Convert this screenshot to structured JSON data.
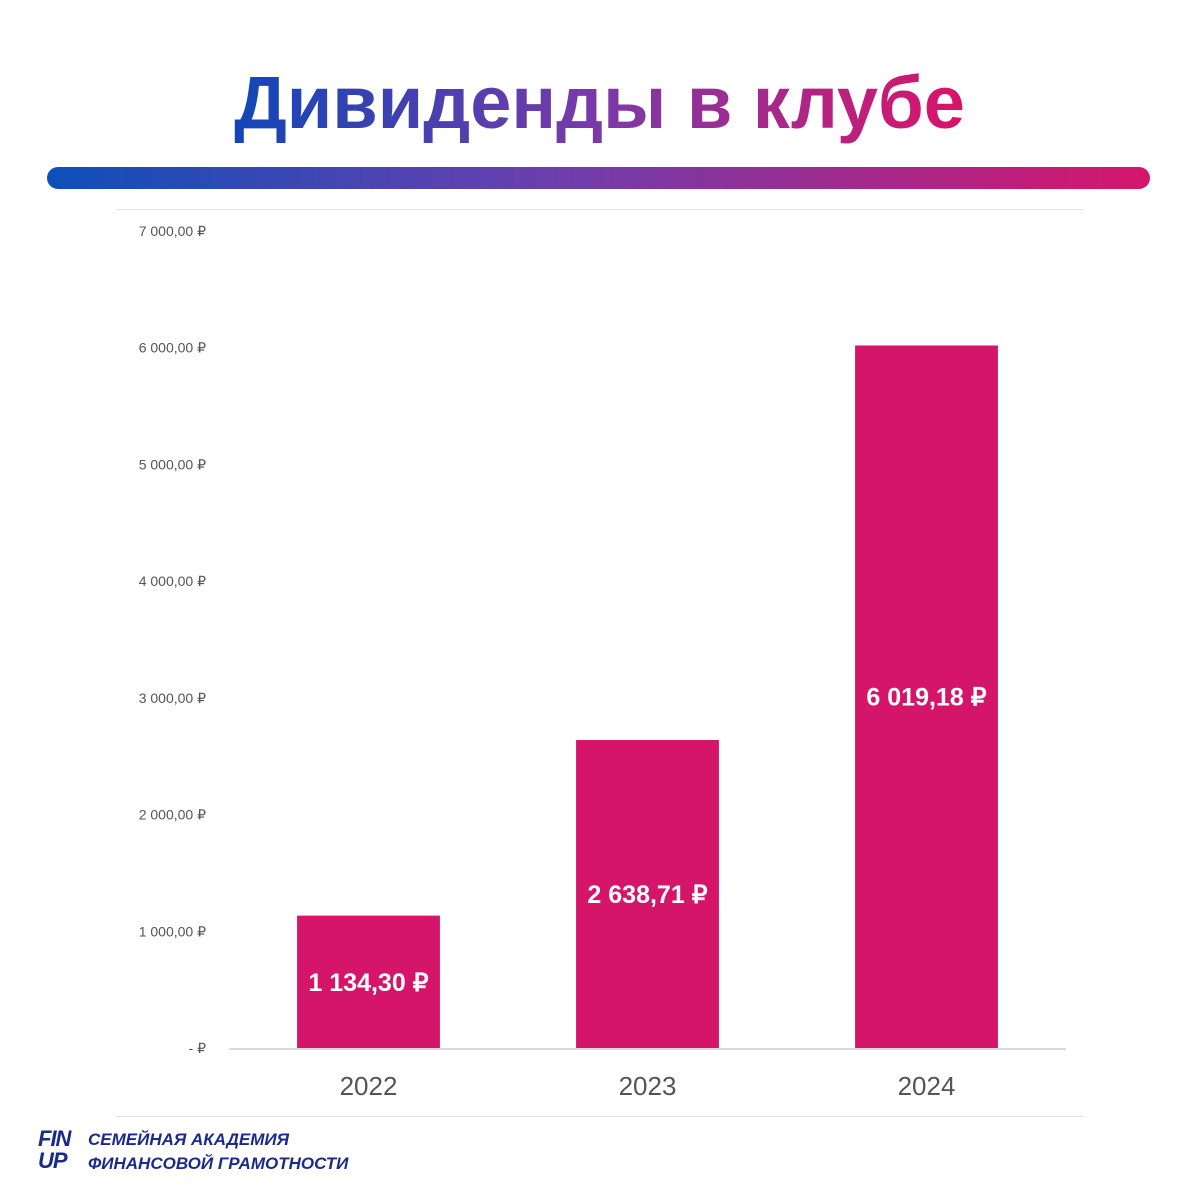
{
  "title": "Дивиденды в клубе",
  "colors": {
    "bar": "#d4156a",
    "title_start": "#1346b8",
    "title_end": "#d8146a",
    "axis_text": "#555555",
    "gridline": "#e0e0e0"
  },
  "chart_data": {
    "type": "bar",
    "categories": [
      "2022",
      "2023",
      "2024"
    ],
    "values": [
      1134.3,
      2638.71,
      6019.18
    ],
    "data_labels": [
      "1 134,30 ₽",
      "2 638,71 ₽",
      "6 019,18 ₽"
    ],
    "ylim": [
      0,
      7000
    ],
    "yticks": [
      0,
      1000,
      2000,
      3000,
      4000,
      5000,
      6000,
      7000
    ],
    "ytick_labels": [
      "-   ₽",
      "1 000,00 ₽",
      "2 000,00 ₽",
      "3 000,00 ₽",
      "4 000,00 ₽",
      "5 000,00 ₽",
      "6 000,00 ₽",
      "7 000,00 ₽"
    ],
    "grid": false,
    "xlabel": "",
    "ylabel": ""
  },
  "footer": {
    "logo_line1": "FIN",
    "logo_line2": "UP",
    "line1": "СЕМЕЙНАЯ АКАДЕМИЯ",
    "line2": "ФИНАНСОВОЙ ГРАМОТНОСТИ"
  }
}
